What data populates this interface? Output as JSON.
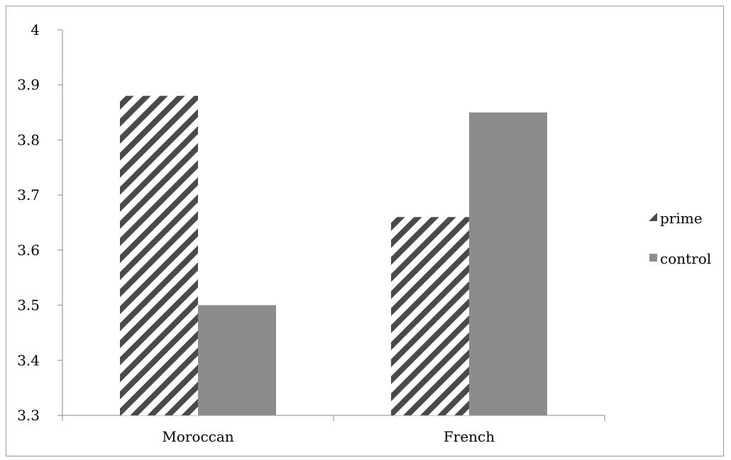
{
  "chart_data": {
    "type": "bar",
    "categories": [
      "Moroccan",
      "French"
    ],
    "series": [
      {
        "name": "prime",
        "values": [
          3.88,
          3.66
        ],
        "color": "#4a4a4a",
        "pattern": "diagonal-stripes"
      },
      {
        "name": "control",
        "values": [
          3.5,
          3.85
        ],
        "color": "#8c8c8c",
        "pattern": "solid"
      }
    ],
    "title": "",
    "xlabel": "",
    "ylabel": "",
    "ylim": [
      3.3,
      4
    ],
    "yticks": [
      "3.3",
      "3.4",
      "3.5",
      "3.6",
      "3.7",
      "3.8",
      "3.9",
      "4"
    ],
    "grid": false,
    "legend_position": "right"
  }
}
